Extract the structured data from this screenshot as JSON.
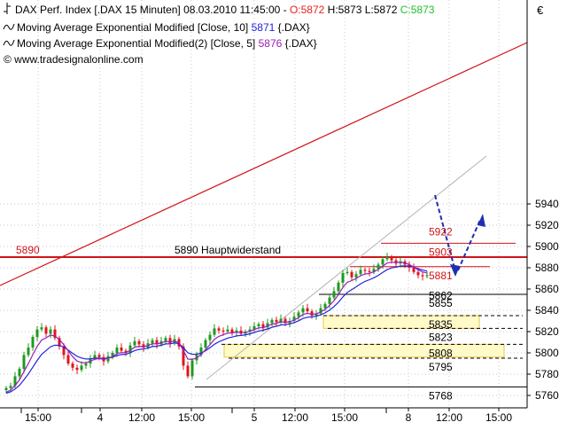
{
  "header": {
    "line1": {
      "instrument": "DAX Perf. Index [.DAX  15 Minuten] 08.03.2010 11:45:00 - ",
      "ohlc": [
        {
          "text": "O:5872",
          "color": "#e8201c"
        },
        {
          "text": " H:5873 L:5872 ",
          "color": "#000000"
        },
        {
          "text": "C:5873",
          "color": "#22c02a"
        }
      ]
    },
    "line2": {
      "text": "Moving Average Exponential Modified [Close, 10] ",
      "value": "5871",
      "value_color": "#2222dd",
      "suffix": " {.DAX}"
    },
    "line3": {
      "text": "Moving Average Exponential Modified(2) [Close, 5] ",
      "value": "5876",
      "value_color": "#9a1fb8",
      "suffix": " {.DAX}"
    },
    "line4": {
      "text": "© www.tradesignalonline.com"
    }
  },
  "currency_symbol": "€",
  "colors": {
    "bullish": "#1e9a1e",
    "bearish": "#e0141c",
    "resistance": "#d01418",
    "ema10": "#2222dd",
    "ema5": "#9a1fb8",
    "zone_fill": "#fffac8",
    "zone_border": "#e8c84a",
    "arrow": "#1f2fb0",
    "trend_gray": "#b4b4b4"
  },
  "chart_data": {
    "type": "candlestick",
    "ylim": [
      5754,
      5958
    ],
    "y_ticks": [
      5760,
      5780,
      5800,
      5820,
      5840,
      5860,
      5880,
      5900,
      5920,
      5940
    ],
    "x_ticks": [
      "15:00",
      "4",
      "12:00",
      "15:00",
      "5",
      "12:00",
      "15:00",
      "8",
      "12:00",
      "15:00"
    ],
    "resistance": {
      "value": 5890,
      "label": "5890",
      "text": "5890 Hauptwiderstand"
    },
    "levels": [
      {
        "value": 5922,
        "label": "5922",
        "color": "#d01418",
        "style": "none"
      },
      {
        "value": 5903,
        "label": "5903",
        "color": "#d01418",
        "style": "solid"
      },
      {
        "value": 5881,
        "label": "5881",
        "color": "#d01418",
        "style": "solid"
      },
      {
        "value": 5862,
        "label": "5862",
        "color": "#000000",
        "style": "none"
      },
      {
        "value": 5855,
        "label": "5855",
        "color": "#000000",
        "style": "solid"
      },
      {
        "value": 5835,
        "label": "5835",
        "color": "#000000",
        "style": "dashed"
      },
      {
        "value": 5823,
        "label": "5823",
        "color": "#000000",
        "style": "dashed"
      },
      {
        "value": 5808,
        "label": "5808",
        "color": "#000000",
        "style": "dashed"
      },
      {
        "value": 5795,
        "label": "5795",
        "color": "#000000",
        "style": "dashed"
      },
      {
        "value": 5768,
        "label": "5768",
        "color": "#000000",
        "style": "solid"
      }
    ],
    "zones": [
      [
        5823,
        5835
      ],
      [
        5796,
        5808
      ]
    ],
    "closes": [
      5767,
      5769,
      5778,
      5785,
      5798,
      5805,
      5815,
      5822,
      5824,
      5818,
      5822,
      5814,
      5806,
      5798,
      5790,
      5786,
      5784,
      5788,
      5790,
      5795,
      5798,
      5796,
      5792,
      5797,
      5800,
      5805,
      5802,
      5800,
      5807,
      5811,
      5808,
      5805,
      5809,
      5812,
      5808,
      5811,
      5814,
      5809,
      5813,
      5806,
      5788,
      5778,
      5793,
      5798,
      5805,
      5812,
      5817,
      5823,
      5821,
      5820,
      5822,
      5819,
      5821,
      5818,
      5820,
      5822,
      5825,
      5827,
      5824,
      5828,
      5831,
      5829,
      5832,
      5828,
      5830,
      5834,
      5838,
      5842,
      5839,
      5835,
      5837,
      5842,
      5846,
      5852,
      5858,
      5866,
      5875,
      5876,
      5871,
      5874,
      5878,
      5877,
      5876,
      5879,
      5883,
      5888,
      5890,
      5887,
      5884,
      5886,
      5883,
      5880,
      5876,
      5873,
      5872,
      5873
    ]
  }
}
